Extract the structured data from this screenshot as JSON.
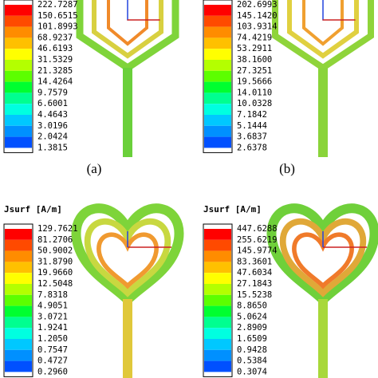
{
  "panels": [
    {
      "caption": "(a)",
      "legend_title": null,
      "labels": [
        "222.7287",
        "150.6515",
        "101.8993",
        "68.9237",
        "46.6193",
        "31.5329",
        "21.3285",
        "14.4264",
        "9.7579",
        "6.6001",
        "4.4643",
        "3.0196",
        "2.0424",
        "1.3815"
      ]
    },
    {
      "caption": "(b)",
      "legend_title": null,
      "labels": [
        "202.6993",
        "145.1420",
        "103.9314",
        "74.4219",
        "53.2911",
        "38.1600",
        "27.3251",
        "19.5666",
        "14.0110",
        "10.0328",
        "7.1842",
        "5.1444",
        "3.6837",
        "2.6378"
      ]
    },
    {
      "caption": null,
      "legend_title": "Jsurf [A/m]",
      "labels": [
        "129.7621",
        "81.2706",
        "50.9002",
        "31.8790",
        "19.9660",
        "12.5048",
        "7.8318",
        "4.9051",
        "3.0721",
        "1.9241",
        "1.2050",
        "0.7547",
        "0.4727",
        "0.2960"
      ]
    },
    {
      "caption": null,
      "legend_title": "Jsurf [A/m]",
      "labels": [
        "447.6288",
        "255.6219",
        "145.9774",
        "83.3601",
        "47.6034",
        "27.1843",
        "15.5238",
        "8.8650",
        "5.0624",
        "2.8909",
        "1.6509",
        "0.9428",
        "0.5384",
        "0.3074"
      ]
    }
  ]
}
